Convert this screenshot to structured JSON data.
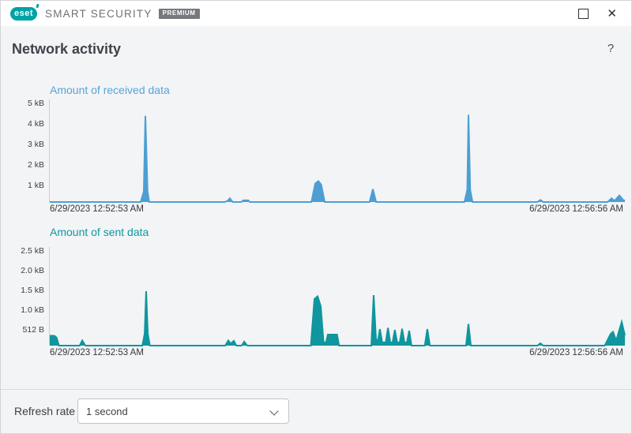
{
  "window": {
    "brand_logo_text": "eset",
    "product_name": "SMART SECURITY",
    "edition_badge": "PREMIUM",
    "close_glyph": "✕"
  },
  "header": {
    "title": "Network activity",
    "help_glyph": "?"
  },
  "footer": {
    "refresh_rate_label": "Refresh rate",
    "refresh_rate_value": "1 second"
  },
  "colors": {
    "brand_teal": "#00a2a7",
    "received_accent": "#4d9fd3",
    "sent_accent": "#0f969e",
    "titlebar_bg": "#ffffff",
    "content_bg": "#f3f4f6"
  },
  "chart_data": [
    {
      "type": "area",
      "title": "Amount of received data",
      "title_color": "#55a5d8",
      "series_color": "#4d9fd3",
      "ylabel": "kB",
      "ylim": [
        0,
        5
      ],
      "yticks_labels": [
        "5 kB",
        "4 kB",
        "3 kB",
        "2 kB",
        "1 kB"
      ],
      "yticks_values": [
        5,
        4,
        3,
        2,
        1
      ],
      "x_start_label": "6/29/2023 12:52:53 AM",
      "x_end_label": "6/29/2023 12:56:56 AM",
      "grid": false,
      "legend": "none",
      "points": [
        [
          0,
          0
        ],
        [
          0.158,
          0
        ],
        [
          0.1635,
          0.5
        ],
        [
          0.1662,
          4.2
        ],
        [
          0.17,
          0.5
        ],
        [
          0.173,
          0
        ],
        [
          0.304,
          0
        ],
        [
          0.309,
          0.05
        ],
        [
          0.3132,
          0.18
        ],
        [
          0.318,
          0
        ],
        [
          0.333,
          0
        ],
        [
          0.3365,
          0.08
        ],
        [
          0.345,
          0.08
        ],
        [
          0.348,
          0
        ],
        [
          0.455,
          0
        ],
        [
          0.4615,
          0.9
        ],
        [
          0.467,
          1.02
        ],
        [
          0.472,
          0.85
        ],
        [
          0.478,
          0
        ],
        [
          0.556,
          0
        ],
        [
          0.5618,
          0.63
        ],
        [
          0.5675,
          0
        ],
        [
          0.721,
          0
        ],
        [
          0.726,
          0.6
        ],
        [
          0.728,
          4.25
        ],
        [
          0.731,
          0.6
        ],
        [
          0.735,
          0
        ],
        [
          0.848,
          0
        ],
        [
          0.853,
          0.1
        ],
        [
          0.858,
          0
        ],
        [
          0.97,
          0
        ],
        [
          0.9766,
          0.18
        ],
        [
          0.982,
          0.06
        ],
        [
          0.9904,
          0.32
        ],
        [
          0.997,
          0.1
        ],
        [
          1,
          0.06
        ]
      ]
    },
    {
      "type": "area",
      "title": "Amount of sent data",
      "title_color": "#0b99a1",
      "series_color": "#0f969e",
      "ylabel": "kB",
      "ylim": [
        0,
        2.5
      ],
      "yticks_labels": [
        "2.5 kB",
        "2.0 kB",
        "1.5 kB",
        "1.0 kB",
        "512 B"
      ],
      "yticks_values": [
        2.5,
        2.0,
        1.5,
        1.0,
        0.5
      ],
      "x_start_label": "6/29/2023 12:52:53 AM",
      "x_end_label": "6/29/2023 12:56:56 AM",
      "grid": false,
      "legend": "none",
      "points": [
        [
          0,
          0.25
        ],
        [
          0.008,
          0.25
        ],
        [
          0.012,
          0.2
        ],
        [
          0.016,
          0
        ],
        [
          0.052,
          0
        ],
        [
          0.0565,
          0.13
        ],
        [
          0.062,
          0
        ],
        [
          0.161,
          0
        ],
        [
          0.165,
          0.3
        ],
        [
          0.1676,
          1.38
        ],
        [
          0.1705,
          0.3
        ],
        [
          0.174,
          0
        ],
        [
          0.305,
          0
        ],
        [
          0.3104,
          0.13
        ],
        [
          0.3146,
          0.05
        ],
        [
          0.32,
          0.12
        ],
        [
          0.3245,
          0
        ],
        [
          0.3335,
          0
        ],
        [
          0.338,
          0.1
        ],
        [
          0.3435,
          0
        ],
        [
          0.454,
          0
        ],
        [
          0.4601,
          1.18
        ],
        [
          0.4657,
          1.25
        ],
        [
          0.4712,
          1.0
        ],
        [
          0.476,
          0.1
        ],
        [
          0.48,
          0.06
        ],
        [
          0.4835,
          0.28
        ],
        [
          0.4995,
          0.28
        ],
        [
          0.503,
          0
        ],
        [
          0.559,
          0
        ],
        [
          0.5632,
          1.28
        ],
        [
          0.5672,
          0.18
        ],
        [
          0.57,
          0.08
        ],
        [
          0.574,
          0.42
        ],
        [
          0.578,
          0.08
        ],
        [
          0.584,
          0.08
        ],
        [
          0.588,
          0.45
        ],
        [
          0.592,
          0.08
        ],
        [
          0.596,
          0.08
        ],
        [
          0.6,
          0.4
        ],
        [
          0.604,
          0.08
        ],
        [
          0.6085,
          0.08
        ],
        [
          0.6126,
          0.43
        ],
        [
          0.6167,
          0.08
        ],
        [
          0.621,
          0.08
        ],
        [
          0.625,
          0.38
        ],
        [
          0.629,
          0
        ],
        [
          0.652,
          0
        ],
        [
          0.6565,
          0.42
        ],
        [
          0.661,
          0
        ],
        [
          0.7238,
          0
        ],
        [
          0.728,
          0.55
        ],
        [
          0.7322,
          0
        ],
        [
          0.848,
          0
        ],
        [
          0.853,
          0.06
        ],
        [
          0.858,
          0
        ],
        [
          0.965,
          0
        ],
        [
          0.9753,
          0.3
        ],
        [
          0.9794,
          0.35
        ],
        [
          0.9849,
          0.12
        ],
        [
          0.9904,
          0.4
        ],
        [
          0.9945,
          0.6
        ],
        [
          1,
          0.26
        ]
      ]
    }
  ]
}
